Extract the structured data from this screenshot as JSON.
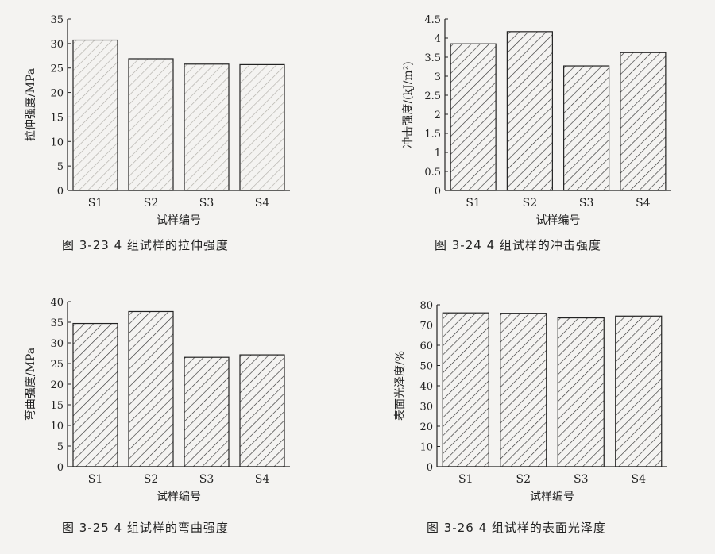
{
  "chart_data": [
    {
      "type": "bar",
      "categories": [
        "S1",
        "S2",
        "S3",
        "S4"
      ],
      "values": [
        30.7,
        26.9,
        25.8,
        25.7
      ],
      "ylabel": "拉伸强度/MPa",
      "xlabel": "试样编号",
      "ylim": [
        0,
        35
      ],
      "yticks": [
        "0",
        "5",
        "10",
        "15",
        "20",
        "25",
        "30",
        "35"
      ],
      "caption": "图 3-23 4 组试样的拉伸强度",
      "hatch_color": "#b0aea8"
    },
    {
      "type": "bar",
      "categories": [
        "S1",
        "S2",
        "S3",
        "S4"
      ],
      "values": [
        3.85,
        4.17,
        3.27,
        3.62
      ],
      "ylabel": "冲击强度/(kJ/m²)",
      "xlabel": "试样编号",
      "ylim": [
        0,
        4.5
      ],
      "yticks": [
        "0",
        "0.5",
        "1",
        "1.5",
        "2",
        "2.5",
        "3",
        "3.5",
        "4",
        "4.5"
      ],
      "caption": "图 3-24 4 组试样的冲击强度",
      "hatch_color": "#333333"
    },
    {
      "type": "bar",
      "categories": [
        "S1",
        "S2",
        "S3",
        "S4"
      ],
      "values": [
        34.7,
        37.6,
        26.5,
        27.1
      ],
      "ylabel": "弯曲强度/MPa",
      "xlabel": "试样编号",
      "ylim": [
        0,
        40
      ],
      "yticks": [
        "0",
        "5",
        "10",
        "15",
        "20",
        "25",
        "30",
        "35",
        "40"
      ],
      "caption": "图 3-25 4 组试样的弯曲强度",
      "hatch_color": "#333333"
    },
    {
      "type": "bar",
      "categories": [
        "S1",
        "S2",
        "S3",
        "S4"
      ],
      "values": [
        76.0,
        75.8,
        73.5,
        74.4
      ],
      "ylabel": "表面光泽度/%",
      "xlabel": "试样编号",
      "ylim": [
        0,
        80
      ],
      "yticks": [
        "0",
        "10",
        "20",
        "30",
        "40",
        "50",
        "60",
        "70",
        "80"
      ],
      "caption": "图 3-26 4 组试样的表面光泽度",
      "hatch_color": "#333333"
    }
  ]
}
